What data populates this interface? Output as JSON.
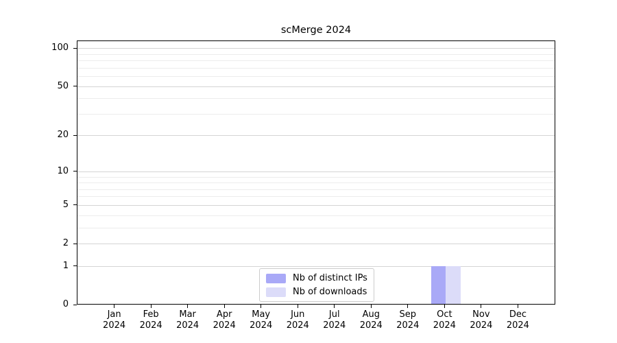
{
  "chart_data": {
    "type": "bar",
    "title": "scMerge 2024",
    "categories": [
      "Jan",
      "Feb",
      "Mar",
      "Apr",
      "May",
      "Jun",
      "Jul",
      "Aug",
      "Sep",
      "Oct",
      "Nov",
      "Dec"
    ],
    "category_year": "2024",
    "series": [
      {
        "name": "Nb of distinct IPs",
        "color": "#a9a9f7",
        "values": [
          0,
          0,
          0,
          0,
          0,
          0,
          0,
          0,
          0,
          1,
          0,
          0
        ]
      },
      {
        "name": "Nb of downloads",
        "color": "#dcdcf9",
        "values": [
          0,
          0,
          0,
          0,
          0,
          0,
          0,
          0,
          0,
          1,
          0,
          0
        ]
      }
    ],
    "yscale": "log1p",
    "yticks": [
      0,
      1,
      2,
      5,
      10,
      20,
      50,
      100
    ],
    "minor_ytick_values": [
      3,
      4,
      6,
      7,
      8,
      9,
      30,
      40,
      60,
      70,
      80,
      90
    ],
    "ylim": [
      0,
      115
    ],
    "xlabel": "",
    "ylabel": "",
    "grid": "horizontal",
    "legend_position": "lower-center-inside",
    "colors": {
      "major_grid": "#d4d4d4",
      "minor_grid": "#ececec",
      "axis": "#000000",
      "text": "#000000",
      "background": "#ffffff"
    }
  }
}
